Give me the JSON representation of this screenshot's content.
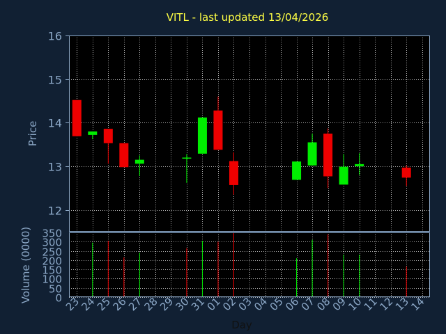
{
  "chart_data": [
    {
      "type": "candlestick",
      "title": "VITL - last updated 13/04/2026",
      "xlabel": "Day",
      "ylabel": "Price",
      "ylim": [
        11.5,
        16
      ],
      "yticks": [
        12,
        13,
        14,
        15,
        16
      ],
      "grid": true,
      "up_color": "#00ee00",
      "down_color": "#ee0000",
      "x_labels": [
        "23",
        "24",
        "25",
        "26",
        "27",
        "28",
        "29",
        "30",
        "31",
        "01",
        "02",
        "03",
        "04",
        "05",
        "06",
        "07",
        "08",
        "09",
        "10",
        "11",
        "12",
        "13",
        "14"
      ],
      "candles": [
        {
          "x": "23",
          "open": 14.52,
          "close": 13.69,
          "high": 14.52,
          "low": 13.69
        },
        {
          "x": "24",
          "open": 13.72,
          "close": 13.8,
          "high": 13.8,
          "low": 13.62
        },
        {
          "x": "25",
          "open": 13.86,
          "close": 13.53,
          "high": 13.86,
          "low": 13.06
        },
        {
          "x": "26",
          "open": 13.53,
          "close": 12.98,
          "high": 13.53,
          "low": 12.98
        },
        {
          "x": "27",
          "open": 13.06,
          "close": 13.15,
          "high": 13.25,
          "low": 12.78
        },
        {
          "x": "30",
          "open": 13.2,
          "close": 13.2,
          "high": 13.28,
          "low": 12.62
        },
        {
          "x": "31",
          "open": 13.29,
          "close": 14.12,
          "high": 14.12,
          "low": 13.29
        },
        {
          "x": "01",
          "open": 14.28,
          "close": 13.38,
          "high": 14.6,
          "low": 13.38
        },
        {
          "x": "02",
          "open": 13.12,
          "close": 12.57,
          "high": 13.32,
          "low": 12.35
        },
        {
          "x": "06",
          "open": 12.69,
          "close": 13.11,
          "high": 13.11,
          "low": 12.69
        },
        {
          "x": "07",
          "open": 13.02,
          "close": 13.55,
          "high": 13.75,
          "low": 13.02
        },
        {
          "x": "08",
          "open": 13.75,
          "close": 12.77,
          "high": 13.87,
          "low": 12.5
        },
        {
          "x": "09",
          "open": 12.58,
          "close": 12.99,
          "high": 13.28,
          "low": 12.58
        },
        {
          "x": "10",
          "open": 13.0,
          "close": 13.05,
          "high": 13.3,
          "low": 12.8
        },
        {
          "x": "13",
          "open": 12.97,
          "close": 12.74,
          "high": 13.02,
          "low": 12.55
        }
      ]
    },
    {
      "type": "bar",
      "ylabel": "Volume (0000)",
      "ylim": [
        0,
        350
      ],
      "yticks": [
        0,
        50,
        100,
        150,
        200,
        250,
        300,
        350
      ],
      "grid": true,
      "bars": [
        {
          "x": "24",
          "value": 295,
          "direction": "up"
        },
        {
          "x": "25",
          "value": 305,
          "direction": "down"
        },
        {
          "x": "26",
          "value": 215,
          "direction": "down"
        },
        {
          "x": "27",
          "value": 240,
          "direction": "up"
        },
        {
          "x": "30",
          "value": 265,
          "direction": "down"
        },
        {
          "x": "31",
          "value": 305,
          "direction": "up"
        },
        {
          "x": "01",
          "value": 300,
          "direction": "down"
        },
        {
          "x": "02",
          "value": 350,
          "direction": "down"
        },
        {
          "x": "06",
          "value": 210,
          "direction": "up"
        },
        {
          "x": "07",
          "value": 310,
          "direction": "up"
        },
        {
          "x": "08",
          "value": 340,
          "direction": "down"
        },
        {
          "x": "09",
          "value": 230,
          "direction": "up"
        },
        {
          "x": "10",
          "value": 230,
          "direction": "up"
        },
        {
          "x": "13",
          "value": 165,
          "direction": "down"
        }
      ]
    }
  ]
}
